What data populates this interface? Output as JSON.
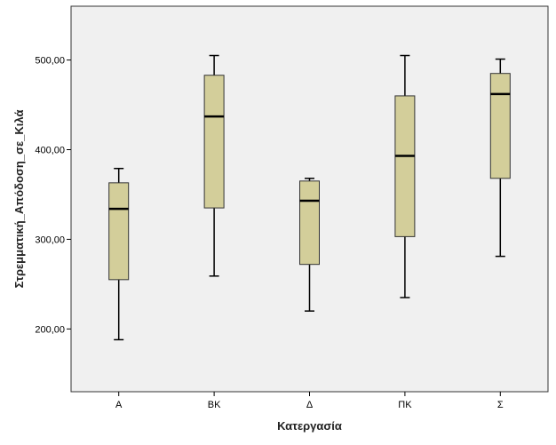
{
  "chart_data": {
    "type": "boxplot",
    "xlabel": "Κατεργασία",
    "ylabel": "Στρεμματική_Απόδοση_σε_Κιλά",
    "ylim": [
      130,
      560
    ],
    "yticks": [
      200,
      300,
      400,
      500
    ],
    "ytick_labels": [
      "200,00",
      "300,00",
      "400,00",
      "500,00"
    ],
    "categories": [
      "Α",
      "ΒΚ",
      "Δ",
      "ΠΚ",
      "Σ"
    ],
    "boxes": [
      {
        "category": "Α",
        "min": 188,
        "q1": 255,
        "median": 334,
        "q3": 363,
        "max": 379
      },
      {
        "category": "ΒΚ",
        "min": 259,
        "q1": 335,
        "median": 437,
        "q3": 483,
        "max": 505
      },
      {
        "category": "Δ",
        "min": 220,
        "q1": 272,
        "median": 343,
        "q3": 365,
        "max": 368
      },
      {
        "category": "ΠΚ",
        "min": 235,
        "q1": 303,
        "median": 393,
        "q3": 460,
        "max": 505
      },
      {
        "category": "Σ",
        "min": 281,
        "q1": 368,
        "median": 462,
        "q3": 485,
        "max": 501
      }
    ],
    "grid": false,
    "colors": {
      "plot_background": "#f0f0f0",
      "box_fill": "#d3ce9a",
      "line": "#000000"
    }
  }
}
